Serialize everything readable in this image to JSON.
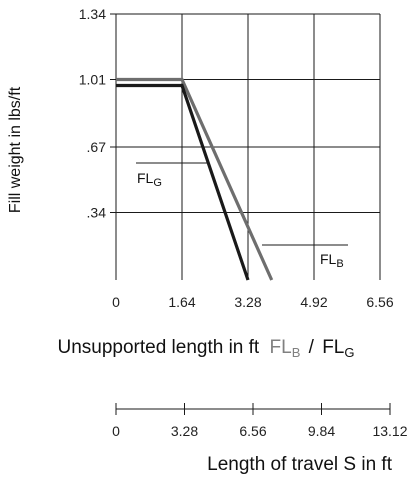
{
  "chart_data": [
    {
      "type": "line",
      "ylabel": "Fill weight in lbs/ft",
      "x_ticks": [
        "0",
        "1.64",
        "3.28",
        "4.92",
        "6.56"
      ],
      "x_tick_values": [
        0,
        1.64,
        3.28,
        4.92,
        6.56
      ],
      "y_ticks": [
        "1.34",
        "1.01",
        ".67",
        ".34"
      ],
      "y_tick_values": [
        1.34,
        1.01,
        0.67,
        0.34
      ],
      "xlim": [
        0,
        6.56
      ],
      "ylim": [
        0,
        1.34
      ],
      "grid": true,
      "xlabel_main": "Unsupported length in ft",
      "xlabel_b": "FL",
      "xlabel_b_sub": "B",
      "xlabel_sep": "/",
      "xlabel_g": "FL",
      "xlabel_g_sub": "G",
      "series": [
        {
          "name": "FL_G",
          "label_main": "FL",
          "label_sub": "G",
          "color": "#1a1a1a",
          "points": [
            [
              0,
              0.98
            ],
            [
              1.64,
              0.98
            ],
            [
              3.28,
              0.0
            ]
          ]
        },
        {
          "name": "FL_B",
          "label_main": "FL",
          "label_sub": "B",
          "color": "#6e6e6e",
          "points": [
            [
              0,
              1.01
            ],
            [
              1.64,
              1.01
            ],
            [
              3.87,
              0.0
            ]
          ]
        }
      ]
    },
    {
      "type": "axis",
      "x_ticks": [
        "0",
        "3.28",
        "6.56",
        "9.84",
        "13.12"
      ],
      "x_tick_values": [
        0,
        3.28,
        6.56,
        9.84,
        13.12
      ],
      "xlim": [
        0,
        13.12
      ],
      "xlabel": "Length of travel S in ft"
    }
  ]
}
